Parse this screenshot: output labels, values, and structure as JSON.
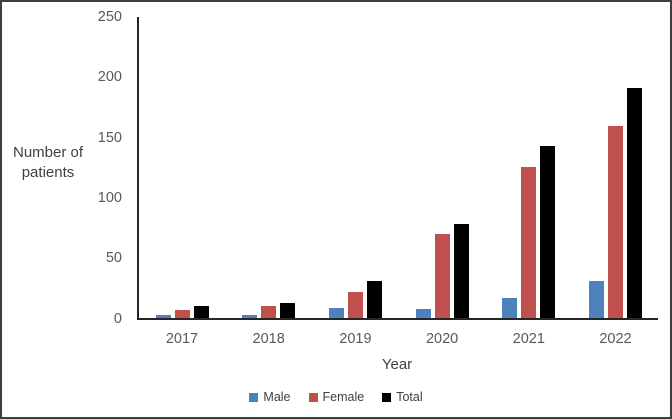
{
  "chart_data": {
    "type": "bar",
    "title": "",
    "xlabel": "Year",
    "ylabel": "Number of patients",
    "ylabel_lines": [
      "Number of",
      "patients"
    ],
    "categories": [
      "2017",
      "2018",
      "2019",
      "2020",
      "2021",
      "2022"
    ],
    "series": [
      {
        "name": "Male",
        "color": "#4F81BD",
        "values": [
          3,
          3,
          9,
          8,
          17,
          31
        ]
      },
      {
        "name": "Female",
        "color": "#C0504D",
        "values": [
          7,
          10,
          22,
          70,
          126,
          160
        ]
      },
      {
        "name": "Total",
        "color": "#000000",
        "values": [
          10,
          13,
          31,
          78,
          143,
          191
        ]
      }
    ],
    "ylim": [
      0,
      250
    ],
    "yticks": [
      0,
      50,
      100,
      150,
      200,
      250
    ],
    "grid": false,
    "legend_position": "bottom"
  },
  "colors": {
    "axis": "#262626",
    "tick_text": "#595959",
    "label_text": "#404040",
    "frame_border": "#3f3f3f",
    "background": "#ffffff"
  }
}
